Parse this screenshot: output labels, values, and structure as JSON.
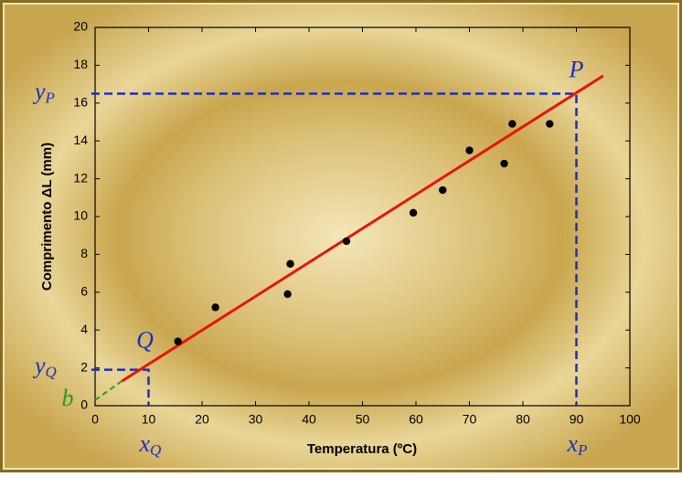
{
  "chart_data": {
    "type": "scatter",
    "xlabel": "Temperatura (ºC)",
    "ylabel": "Comprimento ΔL (mm)",
    "xlim": [
      0,
      100
    ],
    "xticks": [
      0,
      10,
      20,
      30,
      40,
      50,
      60,
      70,
      80,
      90,
      100
    ],
    "ylim": [
      0,
      20
    ],
    "yticks": [
      0,
      2,
      4,
      6,
      8,
      10,
      12,
      14,
      16,
      18,
      20
    ],
    "series": [
      {
        "color": "#000000",
        "x": [
          15.5,
          22.5,
          36,
          36.5,
          47,
          59.5,
          65,
          70,
          76.5,
          78,
          85
        ],
        "y": [
          3.4,
          5.2,
          5.9,
          7.5,
          8.7,
          10.2,
          11.4,
          13.5,
          12.8,
          14.9,
          14.9
        ]
      }
    ],
    "fit": {
      "color": "#e8140c",
      "x": [
        5,
        95
      ],
      "y": [
        1.3,
        17.44
      ]
    },
    "extrapolation": {
      "color": "#2a9a2a",
      "x": [
        0,
        5
      ],
      "y": [
        0.3,
        1.3
      ]
    },
    "guides": [
      {
        "point": "P",
        "x": 90,
        "y": 16.5,
        "x_symbol": "x",
        "y_symbol": "y"
      },
      {
        "point": "Q",
        "x": 10,
        "y": 1.9,
        "x_symbol": "x",
        "y_symbol": "y"
      }
    ],
    "intercept": {
      "label": "b",
      "y": 0.3
    },
    "guide_color": "#1a2fc0"
  }
}
